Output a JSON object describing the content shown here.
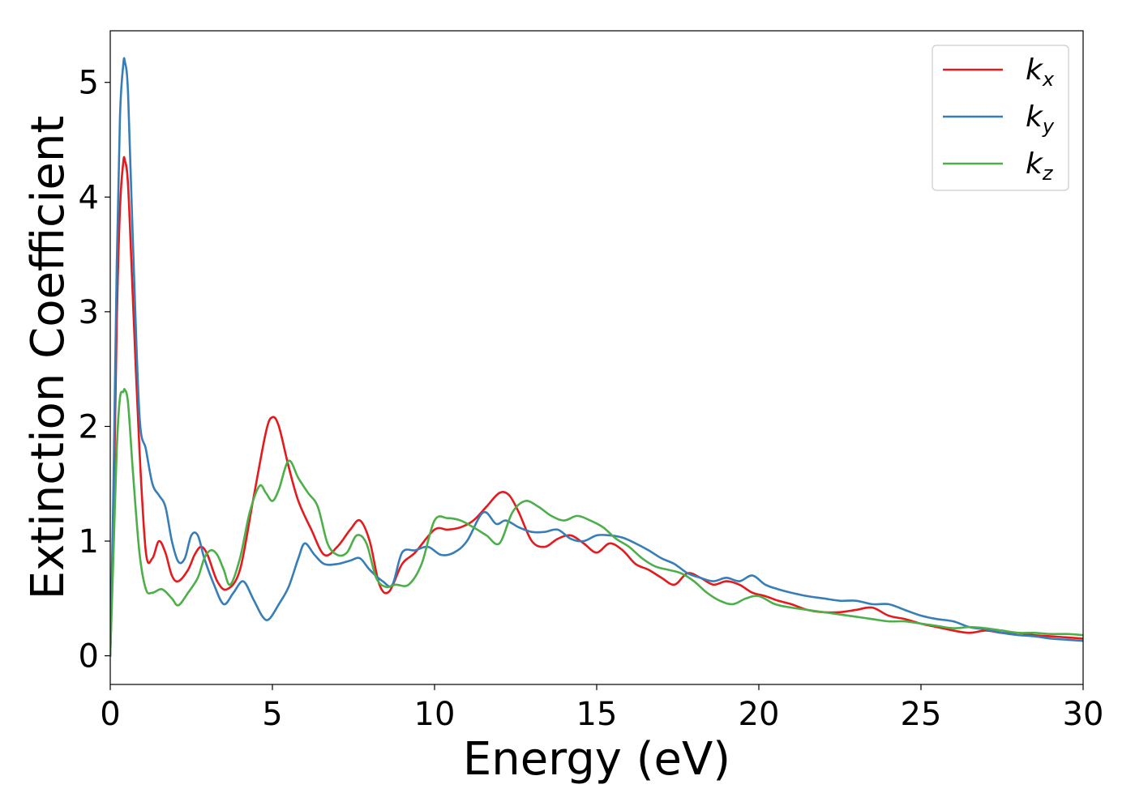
{
  "chart_data": {
    "type": "line",
    "xlabel": "Energy (eV)",
    "ylabel": "Extinction Coefficient",
    "xlim": [
      0,
      30
    ],
    "ylim": [
      -0.25,
      5.45
    ],
    "xticks": [
      0,
      5,
      10,
      15,
      20,
      25,
      30
    ],
    "yticks": [
      0,
      1,
      2,
      3,
      4,
      5
    ],
    "grid": false,
    "legend_position": "top-right",
    "series": [
      {
        "name": "k_x",
        "label_base": "k",
        "label_sub": "x",
        "color": "#e41a1c",
        "x": [
          0,
          0.1,
          0.2,
          0.3,
          0.4,
          0.45,
          0.55,
          0.7,
          0.9,
          1.1,
          1.3,
          1.5,
          1.7,
          1.9,
          2.1,
          2.4,
          2.6,
          2.8,
          3.0,
          3.3,
          3.6,
          4.0,
          4.4,
          4.8,
          5.0,
          5.2,
          5.5,
          5.8,
          6.2,
          6.6,
          7.0,
          7.4,
          7.7,
          8.0,
          8.3,
          8.6,
          9.0,
          9.4,
          10.0,
          10.4,
          10.8,
          11.2,
          11.6,
          12.0,
          12.3,
          12.6,
          13.0,
          13.4,
          13.8,
          14.2,
          14.6,
          15.0,
          15.4,
          15.8,
          16.2,
          16.6,
          17.0,
          17.4,
          17.8,
          18.2,
          18.6,
          19.0,
          19.4,
          19.8,
          20.2,
          20.6,
          21.0,
          21.5,
          22.0,
          22.5,
          23.0,
          23.5,
          24.0,
          24.5,
          25.0,
          25.5,
          26.0,
          26.5,
          27.0,
          27.5,
          28.0,
          28.5,
          29.0,
          29.5,
          30.0
        ],
        "y": [
          0.0,
          1.2,
          2.9,
          3.9,
          4.3,
          4.32,
          4.1,
          3.1,
          1.8,
          0.9,
          0.85,
          1.0,
          0.9,
          0.7,
          0.65,
          0.75,
          0.88,
          0.95,
          0.88,
          0.65,
          0.58,
          0.75,
          1.35,
          1.95,
          2.08,
          2.0,
          1.65,
          1.35,
          1.1,
          0.88,
          0.95,
          1.1,
          1.18,
          1.0,
          0.62,
          0.56,
          0.8,
          0.9,
          1.1,
          1.1,
          1.12,
          1.18,
          1.3,
          1.42,
          1.4,
          1.25,
          1.0,
          0.95,
          1.02,
          1.05,
          0.98,
          0.9,
          0.98,
          0.92,
          0.8,
          0.75,
          0.68,
          0.62,
          0.72,
          0.68,
          0.62,
          0.65,
          0.62,
          0.55,
          0.52,
          0.48,
          0.45,
          0.4,
          0.38,
          0.38,
          0.4,
          0.42,
          0.35,
          0.32,
          0.28,
          0.25,
          0.22,
          0.2,
          0.22,
          0.2,
          0.2,
          0.18,
          0.17,
          0.16,
          0.15
        ]
      },
      {
        "name": "k_y",
        "label_base": "k",
        "label_sub": "y",
        "color": "#377eb8",
        "x": [
          0,
          0.1,
          0.2,
          0.3,
          0.4,
          0.45,
          0.55,
          0.7,
          0.9,
          1.1,
          1.3,
          1.5,
          1.7,
          1.9,
          2.1,
          2.3,
          2.5,
          2.7,
          2.9,
          3.2,
          3.5,
          3.8,
          4.1,
          4.4,
          4.7,
          4.9,
          5.2,
          5.5,
          5.8,
          6.0,
          6.3,
          6.6,
          7.0,
          7.4,
          7.7,
          8.0,
          8.4,
          8.7,
          9.0,
          9.4,
          9.8,
          10.2,
          10.6,
          11.0,
          11.5,
          11.9,
          12.2,
          12.6,
          13.0,
          13.4,
          13.8,
          14.2,
          14.6,
          15.0,
          15.4,
          15.8,
          16.2,
          16.6,
          17.0,
          17.4,
          17.8,
          18.2,
          18.6,
          19.0,
          19.4,
          19.8,
          20.2,
          20.6,
          21.0,
          21.5,
          22.0,
          22.5,
          23.0,
          23.5,
          24.0,
          24.5,
          25.0,
          25.5,
          26.0,
          26.5,
          27.0,
          27.5,
          28.0,
          28.5,
          29.0,
          29.5,
          30.0
        ],
        "y": [
          0.0,
          1.5,
          3.4,
          4.7,
          5.15,
          5.18,
          4.9,
          3.6,
          2.1,
          1.8,
          1.5,
          1.4,
          1.3,
          1.0,
          0.82,
          0.85,
          1.05,
          1.05,
          0.85,
          0.62,
          0.45,
          0.55,
          0.65,
          0.5,
          0.34,
          0.32,
          0.45,
          0.6,
          0.85,
          0.98,
          0.88,
          0.8,
          0.8,
          0.83,
          0.85,
          0.75,
          0.65,
          0.62,
          0.9,
          0.92,
          0.95,
          0.88,
          0.9,
          1.0,
          1.25,
          1.15,
          1.18,
          1.12,
          1.08,
          1.08,
          1.1,
          1.02,
          1.0,
          1.05,
          1.05,
          1.03,
          0.98,
          0.92,
          0.85,
          0.8,
          0.72,
          0.68,
          0.65,
          0.68,
          0.65,
          0.7,
          0.62,
          0.58,
          0.55,
          0.52,
          0.5,
          0.48,
          0.48,
          0.45,
          0.45,
          0.4,
          0.35,
          0.32,
          0.3,
          0.25,
          0.23,
          0.2,
          0.18,
          0.17,
          0.15,
          0.14,
          0.13
        ]
      },
      {
        "name": "k_z",
        "label_base": "k",
        "label_sub": "z",
        "color": "#4daf4a",
        "x": [
          0,
          0.1,
          0.2,
          0.3,
          0.4,
          0.45,
          0.55,
          0.7,
          0.9,
          1.1,
          1.3,
          1.6,
          1.9,
          2.1,
          2.4,
          2.7,
          2.9,
          3.1,
          3.3,
          3.5,
          3.7,
          4.0,
          4.3,
          4.6,
          4.8,
          5.0,
          5.2,
          5.5,
          5.8,
          6.1,
          6.4,
          6.7,
          7.0,
          7.3,
          7.6,
          7.9,
          8.2,
          8.5,
          8.8,
          9.2,
          9.6,
          10.0,
          10.4,
          10.8,
          11.2,
          11.6,
          12.0,
          12.4,
          12.8,
          13.2,
          13.6,
          14.0,
          14.4,
          14.8,
          15.2,
          15.6,
          16.0,
          16.4,
          16.8,
          17.2,
          17.6,
          18.0,
          18.4,
          18.8,
          19.2,
          19.6,
          20.0,
          20.5,
          21.0,
          21.5,
          22.0,
          22.5,
          23.0,
          23.5,
          24.0,
          24.5,
          25.0,
          25.5,
          26.0,
          26.5,
          27.0,
          27.5,
          28.0,
          28.5,
          29.0,
          29.5,
          30.0
        ],
        "y": [
          0.0,
          0.9,
          1.8,
          2.25,
          2.3,
          2.32,
          2.2,
          1.6,
          0.9,
          0.58,
          0.55,
          0.58,
          0.5,
          0.44,
          0.55,
          0.68,
          0.85,
          0.92,
          0.88,
          0.75,
          0.62,
          0.85,
          1.25,
          1.48,
          1.42,
          1.35,
          1.45,
          1.7,
          1.55,
          1.42,
          1.3,
          0.98,
          0.88,
          0.9,
          1.05,
          0.98,
          0.68,
          0.6,
          0.62,
          0.62,
          0.8,
          1.18,
          1.2,
          1.18,
          1.12,
          1.05,
          0.98,
          1.25,
          1.35,
          1.3,
          1.22,
          1.18,
          1.22,
          1.18,
          1.12,
          1.02,
          0.95,
          0.85,
          0.78,
          0.75,
          0.72,
          0.65,
          0.55,
          0.48,
          0.45,
          0.5,
          0.52,
          0.45,
          0.42,
          0.4,
          0.38,
          0.36,
          0.34,
          0.32,
          0.3,
          0.3,
          0.28,
          0.26,
          0.24,
          0.25,
          0.24,
          0.22,
          0.2,
          0.2,
          0.19,
          0.19,
          0.18
        ]
      }
    ]
  }
}
